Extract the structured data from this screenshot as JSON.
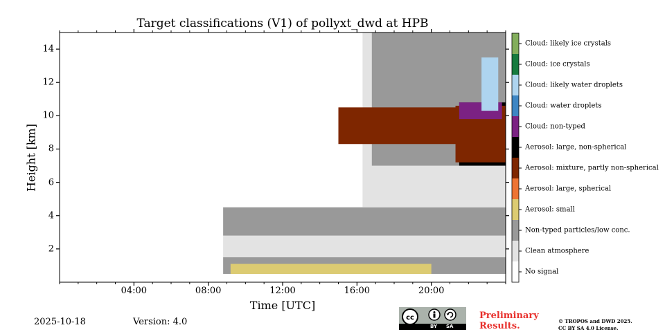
{
  "chart_data": {
    "type": "heatmap",
    "title": "Target classifications (V1) of pollyxt_dwd at HPB",
    "xlabel": "Time [UTC]",
    "ylabel": "Height [km]",
    "xlim_hours": [
      0,
      24
    ],
    "ylim_km": [
      0,
      15
    ],
    "xticks": [
      {
        "hour": 4,
        "label": "04:00"
      },
      {
        "hour": 8,
        "label": "08:00"
      },
      {
        "hour": 12,
        "label": "12:00"
      },
      {
        "hour": 16,
        "label": "16:00"
      },
      {
        "hour": 20,
        "label": "20:00"
      }
    ],
    "yticks": [
      {
        "km": 2,
        "label": "2"
      },
      {
        "km": 4,
        "label": "4"
      },
      {
        "km": 6,
        "label": "6"
      },
      {
        "km": 8,
        "label": "8"
      },
      {
        "km": 10,
        "label": "10"
      },
      {
        "km": 12,
        "label": "12"
      },
      {
        "km": 14,
        "label": "14"
      }
    ],
    "data_start_hour": 8.8,
    "data_end_hour": 24.0,
    "min_height_km": 0.5,
    "classes": [
      {
        "id": 0,
        "label": "No signal",
        "color": "#ffffff"
      },
      {
        "id": 1,
        "label": "Clean atmosphere",
        "color": "#e3e3e3"
      },
      {
        "id": 2,
        "label": "Non-typed particles/low conc.",
        "color": "#999999"
      },
      {
        "id": 3,
        "label": "Aerosol: small",
        "color": "#dccb72"
      },
      {
        "id": 4,
        "label": "Aerosol: large, spherical",
        "color": "#ee7433"
      },
      {
        "id": 5,
        "label": "Aerosol: mixture, partly non-spherical",
        "color": "#7e2600"
      },
      {
        "id": 6,
        "label": "Aerosol: large, non-spherical",
        "color": "#000000"
      },
      {
        "id": 7,
        "label": "Cloud: non-typed",
        "color": "#7b2283"
      },
      {
        "id": 8,
        "label": "Cloud: water droplets",
        "color": "#3e86c4"
      },
      {
        "id": 9,
        "label": "Cloud: likely water droplets",
        "color": "#aed4ef"
      },
      {
        "id": 10,
        "label": "Cloud: ice crystals",
        "color": "#167a3e"
      },
      {
        "id": 11,
        "label": "Cloud: likely ice crystals",
        "color": "#83ae5c"
      }
    ],
    "regions": [
      {
        "class": 2,
        "t0": 8.8,
        "t1": 24.0,
        "h0": 0.5,
        "h1": 1.5
      },
      {
        "class": 3,
        "t0": 9.2,
        "t1": 20.0,
        "h0": 0.5,
        "h1": 1.1
      },
      {
        "class": 1,
        "t0": 8.8,
        "t1": 24.0,
        "h0": 1.5,
        "h1": 2.8
      },
      {
        "class": 2,
        "t0": 8.8,
        "t1": 24.0,
        "h0": 2.8,
        "h1": 4.5
      },
      {
        "class": 1,
        "t0": 16.3,
        "t1": 24.0,
        "h0": 4.5,
        "h1": 15.0
      },
      {
        "class": 2,
        "t0": 16.8,
        "t1": 24.0,
        "h0": 7.0,
        "h1": 15.0
      },
      {
        "class": 5,
        "t0": 15.0,
        "t1": 21.5,
        "h0": 8.3,
        "h1": 10.5
      },
      {
        "class": 6,
        "t0": 21.5,
        "t1": 24.0,
        "h0": 7.0,
        "h1": 10.8
      },
      {
        "class": 5,
        "t0": 21.3,
        "t1": 24.0,
        "h0": 7.2,
        "h1": 10.6
      },
      {
        "class": 7,
        "t0": 21.5,
        "t1": 23.8,
        "h0": 9.8,
        "h1": 10.8
      },
      {
        "class": 9,
        "t0": 22.7,
        "t1": 23.6,
        "h0": 10.3,
        "h1": 13.5
      }
    ]
  },
  "footer": {
    "date": "2025-10-18",
    "version": "Version: 4.0",
    "preliminary_line1": "Preliminary",
    "preliminary_line2": "Results.",
    "copyright_line1": "© TROPOS and DWD 2025.",
    "copyright_line2": "CC BY SA 4.0 License.",
    "badge_by": "BY",
    "badge_sa": "SA"
  }
}
